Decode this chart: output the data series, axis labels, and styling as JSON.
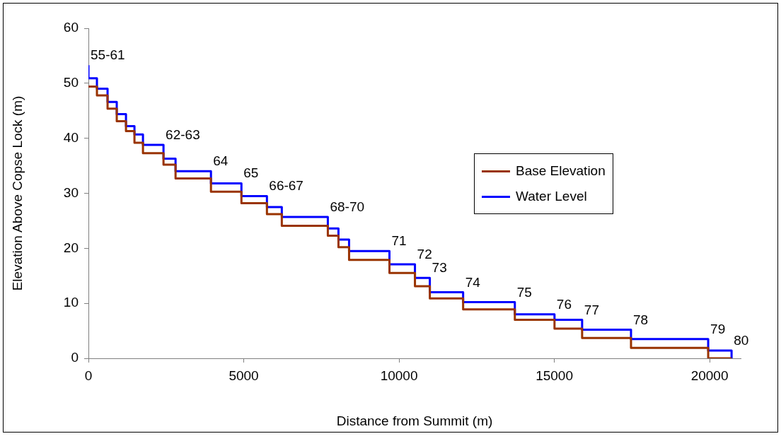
{
  "chart_data": {
    "type": "step",
    "xlabel": "Distance from Summit (m)",
    "ylabel": "Elevation Above Copse Lock (m)",
    "xlim": [
      0,
      21000
    ],
    "xticks": [
      0,
      5000,
      10000,
      15000,
      20000
    ],
    "ylim": [
      0,
      60
    ],
    "yticks": [
      0,
      10,
      20,
      30,
      40,
      50,
      60
    ],
    "legend": "right",
    "series": [
      {
        "name": "Base Elevation",
        "color": "#993300",
        "x": [
          0,
          274,
          616,
          912,
          1209,
          1482,
          1756,
          2417,
          2805,
          3945,
          4926,
          5747,
          6226,
          7708,
          8050,
          8392,
          9692,
          10513,
          10992,
          12064,
          13729,
          15006,
          15895,
          17469,
          19954,
          20707
        ],
        "values": [
          49.4,
          47.8,
          45.4,
          43.1,
          41.3,
          39.2,
          37.3,
          35.2,
          32.7,
          30.3,
          28.2,
          26.2,
          24.1,
          22.3,
          20.2,
          17.9,
          15.5,
          13.1,
          10.9,
          8.9,
          7.0,
          5.4,
          3.7,
          1.9,
          0,
          0
        ]
      },
      {
        "name": "Water Level",
        "color": "#0000ff",
        "x": [
          0,
          0,
          274,
          616,
          912,
          1209,
          1482,
          1756,
          2417,
          2805,
          3945,
          4926,
          5747,
          6226,
          7708,
          8050,
          8392,
          9692,
          10513,
          10992,
          12064,
          13729,
          15006,
          15895,
          17469,
          19954,
          20707
        ],
        "values": [
          53.3,
          50.9,
          49.0,
          46.6,
          44.4,
          42.2,
          40.7,
          38.8,
          36.3,
          34.0,
          31.8,
          29.5,
          27.5,
          25.7,
          23.6,
          21.6,
          19.5,
          17.1,
          14.6,
          12.0,
          10.2,
          8.0,
          7.0,
          5.2,
          3.5,
          1.4,
          0
        ]
      }
    ],
    "annotations": [
      {
        "text": "55-61",
        "x": 0,
        "y": 53.3
      },
      {
        "text": "62-63",
        "x": 2417,
        "y": 38.8
      },
      {
        "text": "64",
        "x": 3945,
        "y": 34.0
      },
      {
        "text": "65",
        "x": 4926,
        "y": 31.8
      },
      {
        "text": "66-67",
        "x": 5747,
        "y": 29.5
      },
      {
        "text": "68-70",
        "x": 7708,
        "y": 25.7
      },
      {
        "text": "71",
        "x": 9692,
        "y": 19.5
      },
      {
        "text": "72",
        "x": 10513,
        "y": 17.1
      },
      {
        "text": "73",
        "x": 10992,
        "y": 14.6
      },
      {
        "text": "74",
        "x": 12064,
        "y": 12.0
      },
      {
        "text": "75",
        "x": 13729,
        "y": 10.2
      },
      {
        "text": "76",
        "x": 15006,
        "y": 8.0
      },
      {
        "text": "77",
        "x": 15895,
        "y": 7.0
      },
      {
        "text": "78",
        "x": 17469,
        "y": 5.2
      },
      {
        "text": "79",
        "x": 19954,
        "y": 3.5
      },
      {
        "text": "80",
        "x": 20707,
        "y": 1.4
      }
    ]
  }
}
